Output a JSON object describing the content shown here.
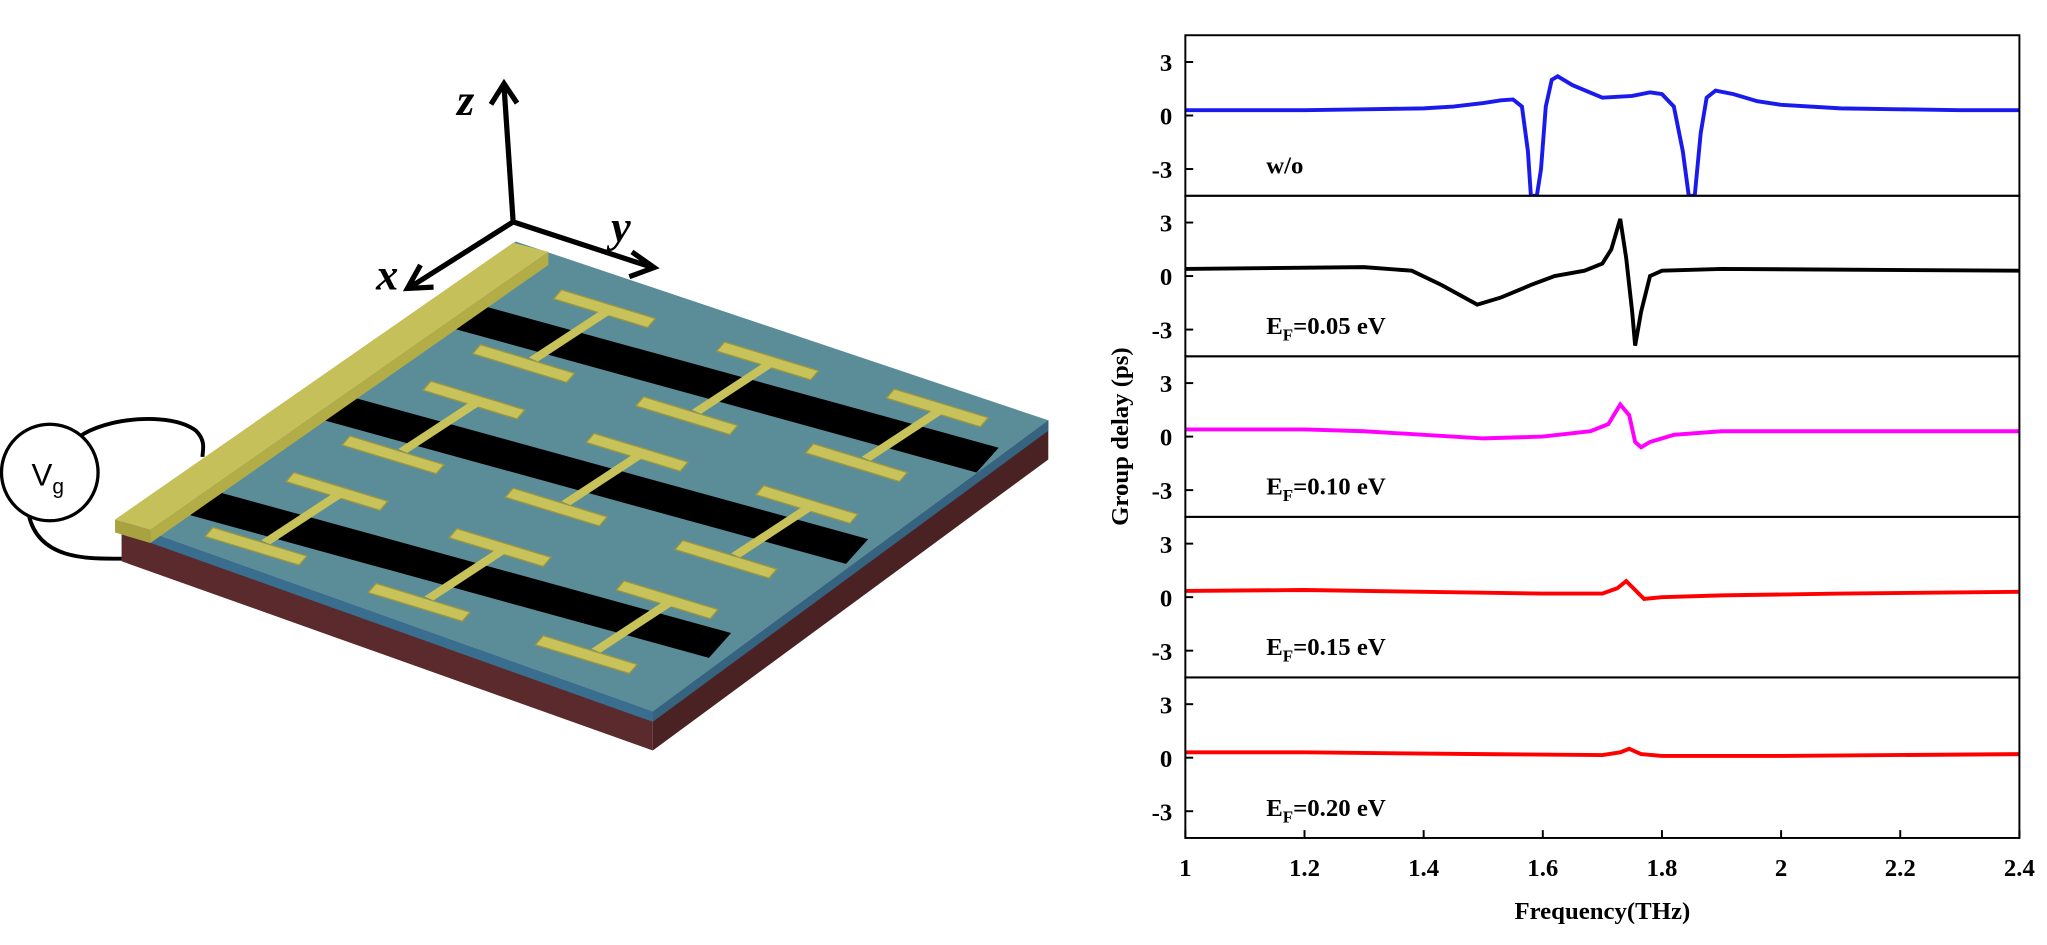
{
  "schematic": {
    "axis_labels": [
      "z",
      "y",
      "x"
    ],
    "source": [
      "V",
      "g"
    ]
  },
  "chart_data": [
    {
      "type": "line",
      "annotation": [
        "w/o"
      ],
      "xlim": [
        1,
        2.4
      ],
      "ylim": [
        -4.5,
        4.5
      ],
      "yticks": [
        -3,
        0,
        3
      ],
      "x": [
        1,
        1.1,
        1.2,
        1.3,
        1.4,
        1.45,
        1.5,
        1.53,
        1.55,
        1.565,
        1.575,
        1.58,
        1.59,
        1.597,
        1.605,
        1.615,
        1.625,
        1.65,
        1.7,
        1.75,
        1.78,
        1.8,
        1.82,
        1.835,
        1.845,
        1.855,
        1.865,
        1.875,
        1.89,
        1.92,
        1.96,
        2.0,
        2.1,
        2.2,
        2.3,
        2.4
      ],
      "series": [
        {
          "color": "#1a1aef",
          "values": [
            0.3,
            0.3,
            0.3,
            0.35,
            0.4,
            0.5,
            0.7,
            0.85,
            0.9,
            0.5,
            -2,
            -4.5,
            -4.5,
            -3,
            0.5,
            2.0,
            2.2,
            1.7,
            1.0,
            1.1,
            1.3,
            1.2,
            0.5,
            -2,
            -4.5,
            -4.5,
            -1,
            1.0,
            1.4,
            1.2,
            0.8,
            0.6,
            0.4,
            0.35,
            0.3,
            0.3
          ]
        }
      ]
    },
    {
      "type": "line",
      "annotation": [
        "E",
        "F",
        "=0.05 eV"
      ],
      "xlim": [
        1,
        2.4
      ],
      "ylim": [
        -4.5,
        4.5
      ],
      "yticks": [
        -3,
        0,
        3
      ],
      "x": [
        1,
        1.3,
        1.38,
        1.43,
        1.49,
        1.53,
        1.58,
        1.62,
        1.67,
        1.7,
        1.715,
        1.73,
        1.74,
        1.75,
        1.755,
        1.765,
        1.78,
        1.8,
        1.9,
        2.4
      ],
      "series": [
        {
          "color": "#000000",
          "values": [
            0.4,
            0.5,
            0.3,
            -0.5,
            -1.6,
            -1.2,
            -0.5,
            0,
            0.3,
            0.7,
            1.5,
            3.2,
            1,
            -2,
            -3.9,
            -2,
            0,
            0.3,
            0.4,
            0.3
          ]
        }
      ]
    },
    {
      "type": "line",
      "annotation": [
        "E",
        "F",
        "=0.10 eV"
      ],
      "xlim": [
        1,
        2.4
      ],
      "ylim": [
        -4.5,
        4.5
      ],
      "yticks": [
        -3,
        0,
        3
      ],
      "ylabel": "Group delay (ps)",
      "x": [
        1,
        1.2,
        1.3,
        1.4,
        1.5,
        1.6,
        1.68,
        1.71,
        1.73,
        1.745,
        1.755,
        1.765,
        1.78,
        1.82,
        1.9,
        2.4
      ],
      "series": [
        {
          "color": "#ff00ff",
          "values": [
            0.4,
            0.4,
            0.3,
            0.1,
            -0.1,
            0,
            0.3,
            0.7,
            1.8,
            1.2,
            -0.3,
            -0.6,
            -0.3,
            0.1,
            0.3,
            0.3
          ]
        }
      ]
    },
    {
      "type": "line",
      "annotation": [
        "E",
        "F",
        "=0.15 eV"
      ],
      "xlim": [
        1,
        2.4
      ],
      "ylim": [
        -4.5,
        4.5
      ],
      "yticks": [
        -3,
        0,
        3
      ],
      "x": [
        1,
        1.2,
        1.4,
        1.6,
        1.7,
        1.725,
        1.74,
        1.755,
        1.77,
        1.8,
        1.9,
        2.1,
        2.4
      ],
      "series": [
        {
          "color": "#ff0000",
          "values": [
            0.35,
            0.4,
            0.3,
            0.2,
            0.2,
            0.5,
            0.9,
            0.4,
            -0.1,
            0,
            0.1,
            0.2,
            0.3
          ]
        }
      ]
    },
    {
      "type": "line",
      "annotation": [
        "E",
        "F",
        "=0.20 eV"
      ],
      "xlim": [
        1,
        2.4
      ],
      "ylim": [
        -4.5,
        4.5
      ],
      "yticks": [
        -3,
        0,
        3
      ],
      "xticks": [
        1,
        1.2,
        1.4,
        1.6,
        1.8,
        2,
        2.2,
        2.4
      ],
      "xlabel": "Frequency(THz)",
      "x": [
        1,
        1.2,
        1.5,
        1.7,
        1.73,
        1.745,
        1.765,
        1.8,
        2.0,
        2.4
      ],
      "series": [
        {
          "color": "#ff0000",
          "values": [
            0.3,
            0.3,
            0.2,
            0.15,
            0.3,
            0.5,
            0.2,
            0.1,
            0.1,
            0.2
          ]
        }
      ]
    }
  ]
}
